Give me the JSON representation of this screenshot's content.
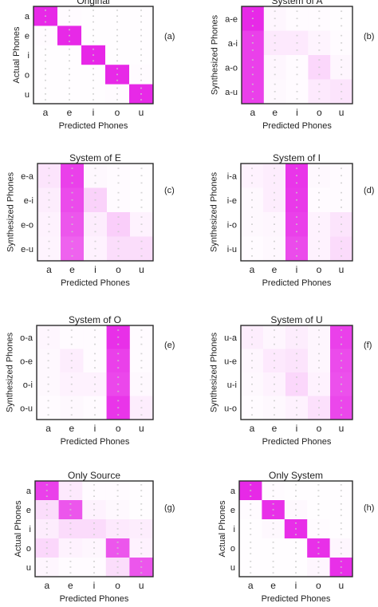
{
  "figure": {
    "x_tick_labels": [
      "a",
      "e",
      "i",
      "o",
      "u"
    ],
    "colors": {
      "max": "#e61ee6",
      "min": "#ffffff",
      "frame": "#2b2b2b",
      "dots": "#c9c9c9"
    }
  },
  "chart_data": [
    {
      "type": "heatmap",
      "panel_label": "(a)",
      "title": "Original",
      "xlabel": "",
      "ylabel": "Actual Phones",
      "rows": [
        "a",
        "e",
        "i",
        "o",
        "u"
      ],
      "cols": [
        "a",
        "e",
        "i",
        "o",
        "u"
      ],
      "values": [
        [
          0.95,
          0.02,
          0.01,
          0.01,
          0.01
        ],
        [
          0.02,
          0.95,
          0.01,
          0.01,
          0.01
        ],
        [
          0.01,
          0.01,
          0.96,
          0.01,
          0.01
        ],
        [
          0.01,
          0.01,
          0.01,
          0.95,
          0.02
        ],
        [
          0.01,
          0.01,
          0.01,
          0.02,
          0.95
        ]
      ]
    },
    {
      "type": "heatmap",
      "panel_label": "(b)",
      "title": "System of A",
      "xlabel": "",
      "ylabel": "Synthesized Phones",
      "rows": [
        "a-e",
        "a-i",
        "a-o",
        "a-u"
      ],
      "cols": [
        "a",
        "e",
        "i",
        "o",
        "u"
      ],
      "values": [
        [
          0.95,
          0.04,
          0.02,
          0.02,
          0.01
        ],
        [
          0.85,
          0.1,
          0.1,
          0.05,
          0.02
        ],
        [
          0.85,
          0.04,
          0.02,
          0.18,
          0.04
        ],
        [
          0.85,
          0.03,
          0.02,
          0.1,
          0.12
        ]
      ]
    },
    {
      "type": "heatmap",
      "panel_label": "(c)",
      "title": "System of E",
      "xlabel": "Predicted Phones",
      "ylabel": "Synthesized Phones",
      "rows": [
        "e-a",
        "e-i",
        "e-o",
        "e-u"
      ],
      "cols": [
        "a",
        "e",
        "i",
        "o",
        "u"
      ],
      "values": [
        [
          0.12,
          0.85,
          0.03,
          0.02,
          0.01
        ],
        [
          0.08,
          0.8,
          0.2,
          0.02,
          0.01
        ],
        [
          0.06,
          0.75,
          0.08,
          0.22,
          0.06
        ],
        [
          0.05,
          0.7,
          0.06,
          0.15,
          0.15
        ]
      ]
    },
    {
      "type": "heatmap",
      "panel_label": "(d)",
      "title": "System of I",
      "xlabel": "Predicted Phones",
      "ylabel": "Synthesized Phones",
      "rows": [
        "i-a",
        "i-e",
        "i-o",
        "i-u"
      ],
      "cols": [
        "a",
        "e",
        "i",
        "o",
        "u"
      ],
      "values": [
        [
          0.06,
          0.08,
          0.9,
          0.03,
          0.02
        ],
        [
          0.03,
          0.08,
          0.88,
          0.02,
          0.02
        ],
        [
          0.03,
          0.04,
          0.85,
          0.06,
          0.12
        ],
        [
          0.02,
          0.03,
          0.8,
          0.06,
          0.16
        ]
      ]
    },
    {
      "type": "heatmap",
      "panel_label": "(e)",
      "title": "System of O",
      "xlabel": "Predicted Phones",
      "ylabel": "Synthesized Phones",
      "rows": [
        "o-a",
        "o-e",
        "o-i",
        "o-u"
      ],
      "cols": [
        "a",
        "e",
        "i",
        "o",
        "u"
      ],
      "values": [
        [
          0.04,
          0.02,
          0.02,
          0.92,
          0.02
        ],
        [
          0.03,
          0.08,
          0.02,
          0.85,
          0.02
        ],
        [
          0.03,
          0.06,
          0.06,
          0.82,
          0.03
        ],
        [
          0.02,
          0.03,
          0.02,
          0.9,
          0.08
        ]
      ]
    },
    {
      "type": "heatmap",
      "panel_label": "(f)",
      "title": "System of U",
      "xlabel": "Predicted Phones",
      "ylabel": "Synthesized Phones",
      "rows": [
        "u-a",
        "u-e",
        "u-i",
        "u-o"
      ],
      "cols": [
        "a",
        "e",
        "i",
        "o",
        "u"
      ],
      "values": [
        [
          0.08,
          0.04,
          0.08,
          0.04,
          0.85
        ],
        [
          0.04,
          0.1,
          0.12,
          0.04,
          0.8
        ],
        [
          0.03,
          0.06,
          0.18,
          0.06,
          0.78
        ],
        [
          0.02,
          0.03,
          0.06,
          0.14,
          0.82
        ]
      ]
    },
    {
      "type": "heatmap",
      "panel_label": "(g)",
      "title": "Only Source",
      "xlabel": "Predicted Phones",
      "ylabel": "Actual Phones",
      "rows": [
        "a",
        "e",
        "i",
        "o",
        "u"
      ],
      "cols": [
        "a",
        "e",
        "i",
        "o",
        "u"
      ],
      "values": [
        [
          0.85,
          0.1,
          0.02,
          0.02,
          0.01
        ],
        [
          0.15,
          0.75,
          0.06,
          0.03,
          0.01
        ],
        [
          0.08,
          0.16,
          0.16,
          0.1,
          0.08
        ],
        [
          0.18,
          0.06,
          0.04,
          0.75,
          0.06
        ],
        [
          0.04,
          0.02,
          0.02,
          0.15,
          0.75
        ]
      ]
    },
    {
      "type": "heatmap",
      "panel_label": "(h)",
      "title": "Only System",
      "xlabel": "Predicted Phones",
      "ylabel": "Actual Phones",
      "rows": [
        "a",
        "e",
        "i",
        "o",
        "u"
      ],
      "cols": [
        "a",
        "e",
        "i",
        "o",
        "u"
      ],
      "values": [
        [
          0.95,
          0.02,
          0.01,
          0.01,
          0.01
        ],
        [
          0.02,
          0.92,
          0.03,
          0.01,
          0.01
        ],
        [
          0.01,
          0.03,
          0.93,
          0.02,
          0.01
        ],
        [
          0.01,
          0.01,
          0.01,
          0.92,
          0.04
        ],
        [
          0.01,
          0.01,
          0.01,
          0.04,
          0.92
        ]
      ]
    }
  ]
}
